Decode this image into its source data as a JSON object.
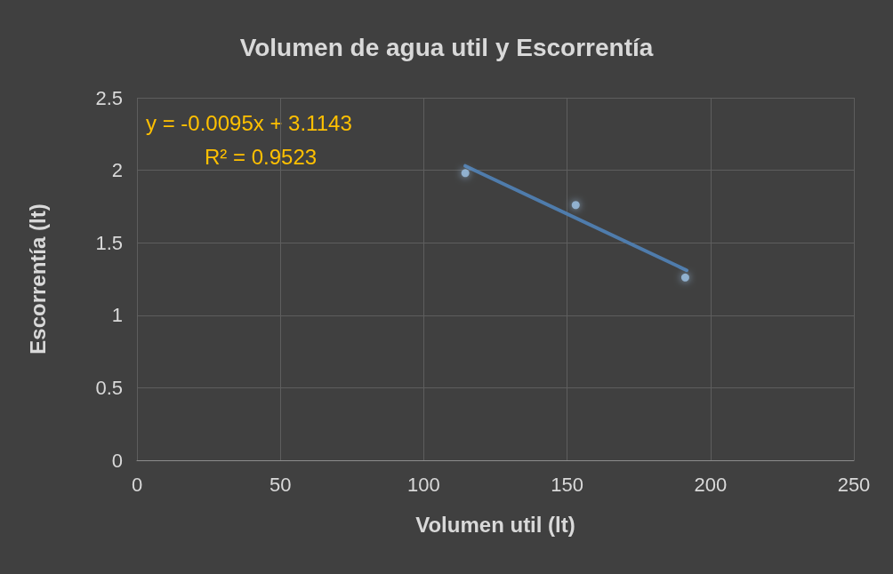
{
  "chart_data": {
    "type": "scatter",
    "title": "Volumen de agua util y Escorrentía",
    "xlabel": "Volumen util (lt)",
    "ylabel": "Escorrentía (lt)",
    "annotations": [
      "y = -0.0095x + 3.1143",
      "R² = 0.9523"
    ],
    "series": [
      {
        "marker": "circle",
        "color": "#9dc3e6",
        "x": [
          114.5,
          153,
          191.2
        ],
        "values": [
          1.98,
          1.76,
          1.26
        ]
      },
      {
        "type": "line",
        "color": "#4f7cac",
        "x": [
          114.5,
          191.7
        ],
        "values": [
          2.03,
          1.31
        ]
      }
    ],
    "xlim": [
      0,
      250
    ],
    "xticks": [
      0,
      50,
      100,
      150,
      200,
      250
    ],
    "ylim": [
      0,
      2.5
    ],
    "yticks": [
      0,
      0.5,
      1,
      1.5,
      2,
      2.5
    ],
    "grid": true,
    "line_style": "solid"
  }
}
